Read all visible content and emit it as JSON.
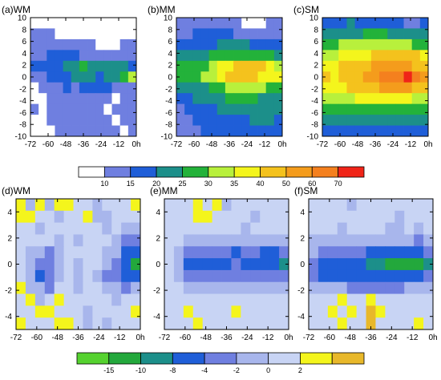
{
  "chart_data": {
    "type": "heatmap",
    "top_colorbar": {
      "colors": [
        "#ffffff",
        "#6f7fe0",
        "#1f5ed8",
        "#1c8f8a",
        "#23b23a",
        "#b8f03c",
        "#f4f51c",
        "#f4c21d",
        "#f49c1c",
        "#f4801e",
        "#f02418"
      ],
      "tick_labels": [
        "10",
        "15",
        "20",
        "25",
        "30",
        "35",
        "40",
        "50",
        "60",
        "70"
      ]
    },
    "bottom_colorbar": {
      "colors": [
        "#55d22f",
        "#23a83c",
        "#1c8f8a",
        "#1f5ed8",
        "#6f7fe0",
        "#a8b6ec",
        "#c8d4f4",
        "#f4f51c",
        "#e8b82a"
      ],
      "tick_labels": [
        "-15",
        "-10",
        "-8",
        "-4",
        "-2",
        "0",
        "2"
      ]
    },
    "panels": [
      {
        "label": "(a)WM",
        "xticks": [
          "-72",
          "-60",
          "-48",
          "-36",
          "-24",
          "-12",
          "0h"
        ],
        "yticks": [
          "10",
          "8",
          "6",
          "4",
          "2",
          "0",
          "-2",
          "-4",
          "-6",
          "-8",
          "-10"
        ],
        "x": [
          -72,
          -66,
          -60,
          -54,
          -48,
          -42,
          -36,
          -30,
          -24,
          -18,
          -12,
          -6,
          0
        ],
        "y": [
          10,
          8,
          6,
          4,
          2,
          0,
          -2,
          -4,
          -6,
          -8,
          -10
        ],
        "z": [
          [
            0,
            0,
            0,
            0,
            0,
            0,
            0,
            0,
            0,
            0,
            0,
            0,
            0
          ],
          [
            1,
            1,
            1,
            0,
            0,
            0,
            0,
            0,
            0,
            0,
            0,
            0,
            0
          ],
          [
            1,
            1,
            1,
            1,
            1,
            1,
            1,
            1,
            0,
            0,
            0,
            1,
            1
          ],
          [
            1,
            1,
            2,
            2,
            2,
            2,
            1,
            1,
            1,
            1,
            1,
            1,
            1
          ],
          [
            2,
            2,
            2,
            2,
            3,
            3,
            4,
            3,
            3,
            3,
            3,
            3,
            2
          ],
          [
            1,
            1,
            2,
            2,
            2,
            3,
            3,
            3,
            2,
            3,
            3,
            4,
            5
          ],
          [
            0,
            1,
            1,
            1,
            2,
            1,
            2,
            2,
            2,
            2,
            1,
            1,
            1
          ],
          [
            0,
            0,
            1,
            1,
            1,
            1,
            1,
            1,
            1,
            1,
            0,
            1,
            1
          ],
          [
            1,
            0,
            1,
            1,
            1,
            1,
            1,
            1,
            1,
            0,
            1,
            1,
            1
          ],
          [
            0,
            0,
            1,
            1,
            1,
            1,
            1,
            1,
            1,
            1,
            0,
            1,
            1
          ],
          [
            0,
            0,
            0,
            1,
            1,
            1,
            1,
            1,
            1,
            1,
            1,
            0,
            1
          ]
        ]
      },
      {
        "label": "(b)MM",
        "xticks": [
          "-72",
          "-60",
          "-48",
          "-36",
          "-24",
          "-12",
          "0h"
        ],
        "yticks": [
          "10",
          "8",
          "6",
          "4",
          "2",
          "0",
          "-2",
          "-4",
          "-6",
          "-8",
          "-10"
        ],
        "x": [
          -72,
          -66,
          -60,
          -54,
          -48,
          -42,
          -36,
          -30,
          -24,
          -18,
          -12,
          -6,
          0
        ],
        "y": [
          10,
          8,
          6,
          4,
          2,
          0,
          -2,
          -4,
          -6,
          -8,
          -10
        ],
        "z": [
          [
            1,
            1,
            1,
            1,
            1,
            1,
            1,
            1,
            0,
            0,
            0,
            1,
            1
          ],
          [
            1,
            1,
            2,
            2,
            2,
            2,
            2,
            1,
            1,
            1,
            1,
            1,
            1
          ],
          [
            2,
            2,
            2,
            2,
            2,
            3,
            3,
            3,
            3,
            2,
            2,
            2,
            2
          ],
          [
            3,
            3,
            3,
            3,
            4,
            4,
            4,
            4,
            4,
            4,
            4,
            4,
            3
          ],
          [
            4,
            4,
            4,
            4,
            5,
            6,
            6,
            7,
            7,
            7,
            7,
            6,
            5
          ],
          [
            4,
            4,
            4,
            5,
            5,
            6,
            7,
            7,
            7,
            7,
            6,
            6,
            6
          ],
          [
            3,
            3,
            3,
            3,
            4,
            4,
            5,
            5,
            5,
            5,
            5,
            4,
            4
          ],
          [
            2,
            2,
            3,
            3,
            3,
            3,
            4,
            4,
            4,
            4,
            3,
            3,
            3
          ],
          [
            1,
            2,
            2,
            2,
            2,
            3,
            3,
            3,
            3,
            3,
            3,
            3,
            3
          ],
          [
            1,
            1,
            2,
            2,
            2,
            2,
            2,
            2,
            2,
            3,
            3,
            3,
            2
          ],
          [
            1,
            1,
            1,
            2,
            2,
            2,
            2,
            2,
            2,
            2,
            2,
            2,
            2
          ]
        ]
      },
      {
        "label": "(c)SM",
        "xticks": [
          "-72",
          "-60",
          "-48",
          "-36",
          "-24",
          "-12",
          "0h"
        ],
        "yticks": [
          "10",
          "8",
          "6",
          "4",
          "2",
          "0",
          "-2",
          "-4",
          "-6",
          "-8",
          "-10"
        ],
        "x": [
          -72,
          -66,
          -60,
          -54,
          -48,
          -42,
          -36,
          -30,
          -24,
          -18,
          -12,
          -6,
          0
        ],
        "y": [
          10,
          8,
          6,
          4,
          2,
          0,
          -2,
          -4,
          -6,
          -8,
          -10
        ],
        "z": [
          [
            2,
            2,
            2,
            3,
            2,
            2,
            2,
            2,
            2,
            2,
            1,
            1,
            2
          ],
          [
            3,
            3,
            3,
            3,
            3,
            4,
            4,
            4,
            3,
            3,
            3,
            3,
            3
          ],
          [
            4,
            4,
            5,
            5,
            5,
            5,
            5,
            5,
            5,
            5,
            5,
            4,
            4
          ],
          [
            5,
            5,
            6,
            6,
            6,
            6,
            7,
            7,
            7,
            7,
            7,
            7,
            6
          ],
          [
            6,
            6,
            7,
            7,
            7,
            7,
            8,
            8,
            8,
            8,
            8,
            7,
            7
          ],
          [
            7,
            6,
            7,
            7,
            7,
            8,
            8,
            9,
            9,
            9,
            10,
            9,
            8
          ],
          [
            6,
            6,
            6,
            7,
            7,
            7,
            7,
            8,
            8,
            8,
            8,
            7,
            7
          ],
          [
            5,
            5,
            5,
            5,
            6,
            6,
            6,
            6,
            6,
            6,
            6,
            5,
            5
          ],
          [
            4,
            4,
            4,
            4,
            4,
            4,
            4,
            4,
            4,
            4,
            4,
            4,
            4
          ],
          [
            3,
            3,
            3,
            3,
            3,
            3,
            3,
            3,
            3,
            3,
            3,
            3,
            3
          ],
          [
            2,
            2,
            2,
            2,
            2,
            2,
            2,
            2,
            2,
            2,
            2,
            2,
            2
          ]
        ]
      },
      {
        "label": "(d)WM",
        "xticks": [
          "-72",
          "-60",
          "-48",
          "-36",
          "-24",
          "-12",
          "0h"
        ],
        "yticks": [
          "4",
          "2",
          "0",
          "-2",
          "-4"
        ],
        "x": [
          -72,
          -66,
          -60,
          -54,
          -48,
          -42,
          -36,
          -30,
          -24,
          -18,
          -12,
          -6,
          0
        ],
        "y": [
          5,
          4,
          3,
          2,
          1,
          0,
          -1,
          -2,
          -3,
          -4,
          -5
        ],
        "z": [
          [
            7,
            5,
            7,
            5,
            7,
            7,
            6,
            6,
            5,
            6,
            6,
            6,
            7
          ],
          [
            7,
            7,
            6,
            6,
            5,
            6,
            6,
            7,
            5,
            5,
            6,
            6,
            6
          ],
          [
            6,
            6,
            5,
            6,
            6,
            6,
            6,
            6,
            6,
            5,
            6,
            5,
            5
          ],
          [
            6,
            6,
            6,
            6,
            5,
            6,
            5,
            6,
            6,
            6,
            5,
            4,
            4
          ],
          [
            6,
            5,
            5,
            4,
            5,
            6,
            6,
            6,
            6,
            5,
            5,
            3,
            3
          ],
          [
            6,
            5,
            4,
            4,
            5,
            6,
            5,
            6,
            6,
            5,
            4,
            3,
            1
          ],
          [
            6,
            5,
            3,
            4,
            5,
            6,
            5,
            6,
            5,
            4,
            4,
            3,
            3
          ],
          [
            7,
            5,
            5,
            4,
            6,
            6,
            5,
            6,
            6,
            5,
            5,
            4,
            5
          ],
          [
            6,
            7,
            5,
            6,
            7,
            6,
            6,
            6,
            6,
            6,
            5,
            6,
            6
          ],
          [
            6,
            6,
            7,
            7,
            6,
            6,
            6,
            5,
            6,
            6,
            6,
            6,
            7
          ],
          [
            7,
            6,
            6,
            6,
            7,
            7,
            6,
            5,
            6,
            5,
            6,
            6,
            6
          ]
        ]
      },
      {
        "label": "(e)MM",
        "xticks": [
          "-72",
          "-60",
          "-48",
          "-36",
          "-24",
          "-12",
          "0h"
        ],
        "yticks": [
          "4",
          "2",
          "0",
          "-2",
          "-4"
        ],
        "x": [
          -72,
          -66,
          -60,
          -54,
          -48,
          -42,
          -36,
          -30,
          -24,
          -18,
          -12,
          -6,
          0
        ],
        "y": [
          5,
          4,
          3,
          2,
          1,
          0,
          -1,
          -2,
          -3,
          -4,
          -5
        ],
        "z": [
          [
            6,
            6,
            6,
            7,
            6,
            7,
            5,
            6,
            6,
            6,
            6,
            6,
            6
          ],
          [
            6,
            6,
            6,
            7,
            7,
            6,
            6,
            6,
            6,
            5,
            6,
            6,
            6
          ],
          [
            6,
            6,
            6,
            6,
            6,
            6,
            6,
            6,
            5,
            6,
            6,
            6,
            6
          ],
          [
            6,
            6,
            5,
            5,
            5,
            5,
            5,
            5,
            5,
            5,
            5,
            5,
            5
          ],
          [
            6,
            5,
            4,
            4,
            4,
            4,
            4,
            3,
            4,
            4,
            3,
            3,
            4
          ],
          [
            6,
            5,
            3,
            3,
            3,
            3,
            3,
            4,
            3,
            3,
            3,
            3,
            2
          ],
          [
            6,
            5,
            4,
            4,
            4,
            4,
            4,
            4,
            4,
            4,
            4,
            4,
            4
          ],
          [
            6,
            6,
            5,
            5,
            5,
            5,
            5,
            5,
            5,
            5,
            5,
            5,
            5
          ],
          [
            6,
            6,
            6,
            6,
            6,
            6,
            6,
            6,
            6,
            6,
            6,
            6,
            6
          ],
          [
            6,
            6,
            7,
            6,
            6,
            6,
            6,
            7,
            6,
            6,
            6,
            6,
            6
          ],
          [
            6,
            6,
            6,
            7,
            6,
            6,
            6,
            6,
            6,
            6,
            6,
            6,
            6
          ]
        ]
      },
      {
        "label": "(f)SM",
        "xticks": [
          "-72",
          "-60",
          "-48",
          "-36",
          "-24",
          "-12",
          "0h"
        ],
        "yticks": [
          "4",
          "2",
          "0",
          "-2",
          "-4"
        ],
        "x": [
          -72,
          -66,
          -60,
          -54,
          -48,
          -42,
          -36,
          -30,
          -24,
          -18,
          -12,
          -6,
          0
        ],
        "y": [
          5,
          4,
          3,
          2,
          1,
          0,
          -1,
          -2,
          -3,
          -4,
          -5
        ],
        "z": [
          [
            6,
            6,
            6,
            6,
            5,
            6,
            6,
            6,
            6,
            6,
            6,
            6,
            6
          ],
          [
            6,
            6,
            6,
            6,
            6,
            6,
            6,
            6,
            6,
            5,
            6,
            6,
            6
          ],
          [
            6,
            6,
            6,
            5,
            6,
            6,
            6,
            6,
            5,
            5,
            6,
            5,
            6
          ],
          [
            5,
            5,
            5,
            5,
            5,
            5,
            5,
            5,
            5,
            5,
            5,
            4,
            5
          ],
          [
            5,
            4,
            4,
            4,
            4,
            4,
            3,
            3,
            3,
            3,
            3,
            3,
            4
          ],
          [
            4,
            3,
            3,
            3,
            3,
            3,
            2,
            2,
            1,
            1,
            1,
            1,
            2
          ],
          [
            4,
            3,
            3,
            3,
            3,
            3,
            3,
            3,
            3,
            3,
            3,
            3,
            4
          ],
          [
            5,
            5,
            5,
            5,
            4,
            4,
            4,
            4,
            4,
            4,
            5,
            5,
            5
          ],
          [
            6,
            6,
            6,
            7,
            6,
            6,
            7,
            6,
            6,
            6,
            6,
            6,
            6
          ],
          [
            6,
            6,
            7,
            6,
            7,
            6,
            8,
            7,
            6,
            6,
            6,
            6,
            6
          ],
          [
            6,
            6,
            6,
            7,
            6,
            6,
            8,
            6,
            6,
            6,
            6,
            7,
            6
          ]
        ]
      }
    ]
  }
}
